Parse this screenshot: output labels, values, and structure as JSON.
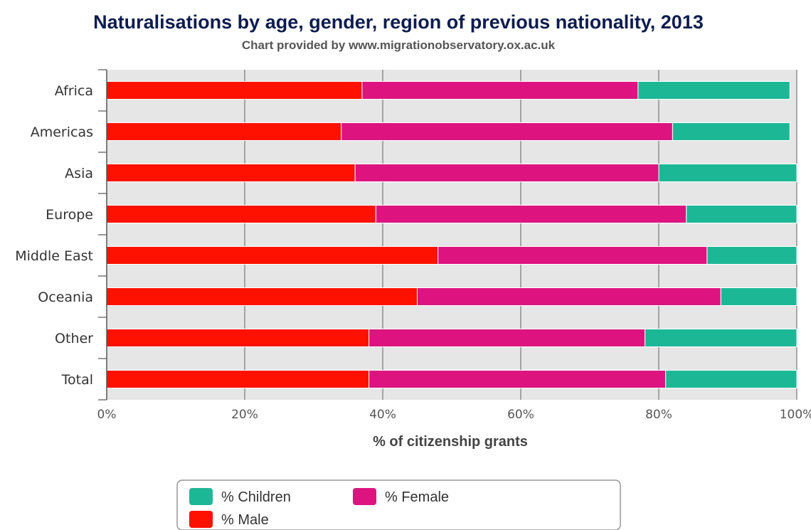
{
  "chart_data": {
    "type": "bar",
    "orientation": "horizontal",
    "stacked": true,
    "title": "Naturalisations by age, gender, region of previous nationality, 2013",
    "subtitle": "Chart provided by www.migrationobservatory.ox.ac.uk",
    "xlabel": "% of citizenship grants",
    "ylabel": "",
    "xlim": [
      0,
      100
    ],
    "x_ticks": [
      "0%",
      "20%",
      "40%",
      "60%",
      "80%",
      "100%"
    ],
    "grid": true,
    "legend_position": "bottom-center",
    "categories": [
      "Africa",
      "Americas",
      "Asia",
      "Europe",
      "Middle East",
      "Oceania",
      "Other",
      "Total"
    ],
    "series": [
      {
        "name": "% Male",
        "color": "#ff1100",
        "values": [
          37,
          34,
          36,
          39,
          48,
          45,
          38,
          38
        ]
      },
      {
        "name": "% Female",
        "color": "#dd1480",
        "values": [
          40,
          48,
          44,
          45,
          39,
          44,
          40,
          43
        ]
      },
      {
        "name": "% Children",
        "color": "#1cb896",
        "values": [
          22,
          17,
          20,
          16,
          13,
          11,
          22,
          19
        ]
      }
    ],
    "legend_order": [
      "% Children",
      "% Female",
      "% Male"
    ]
  }
}
